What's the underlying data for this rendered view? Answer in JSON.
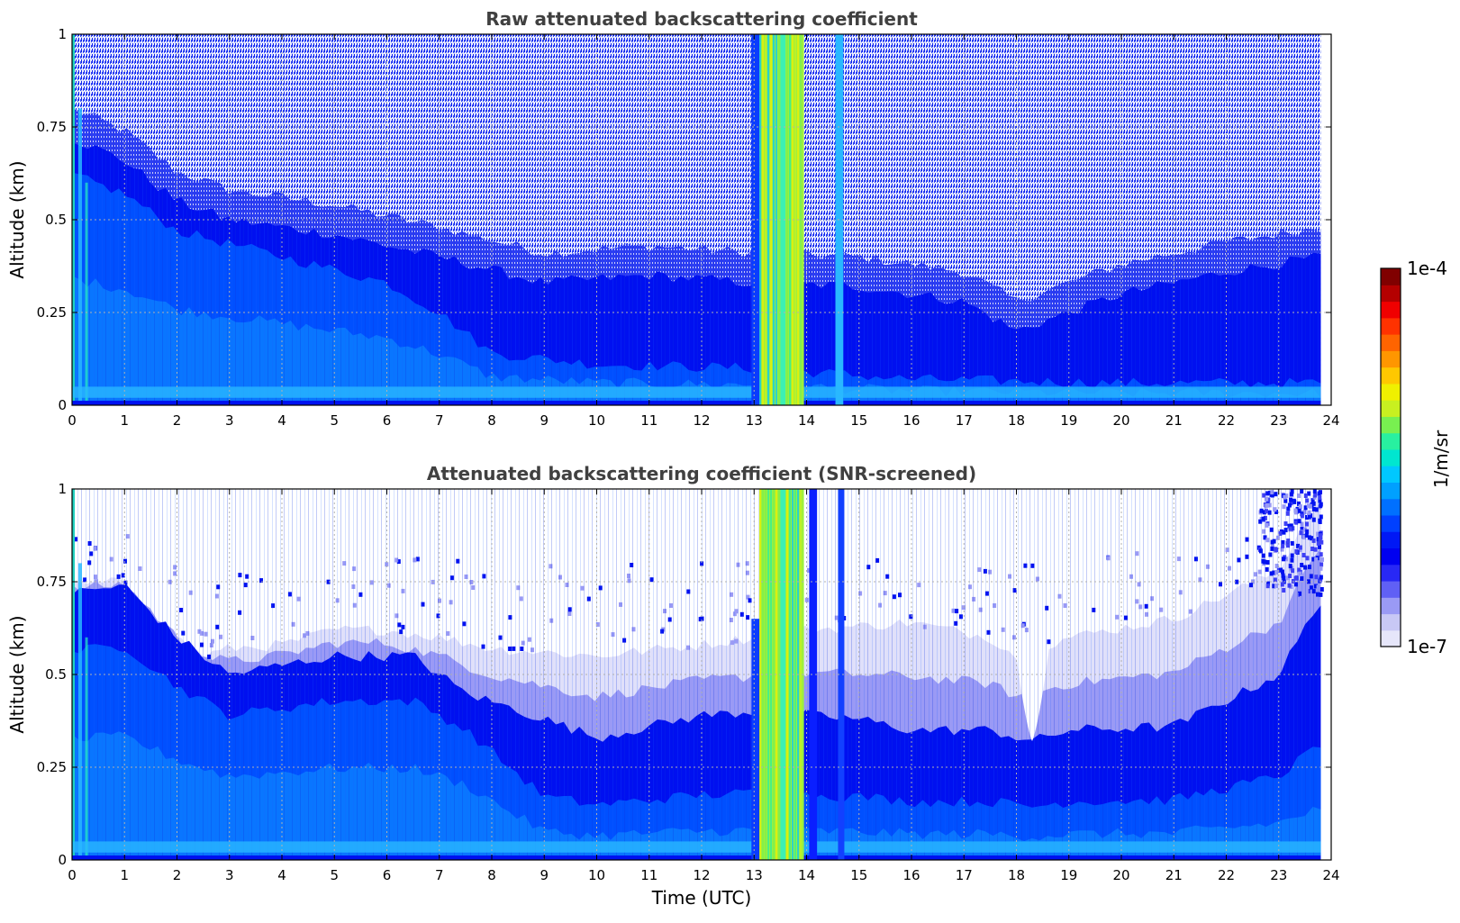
{
  "chart_data": [
    {
      "type": "heatmap",
      "title": "Raw attenuated backscattering coefficient",
      "ylabel": "Altitude (km)",
      "xlabel": "",
      "xlim": [
        0,
        24
      ],
      "ylim": [
        0,
        1
      ],
      "x_ticks": [
        "0",
        "1",
        "2",
        "3",
        "4",
        "5",
        "6",
        "7",
        "8",
        "9",
        "10",
        "11",
        "12",
        "13",
        "14",
        "15",
        "16",
        "17",
        "18",
        "19",
        "20",
        "21",
        "22",
        "23",
        "24"
      ],
      "y_ticks": [
        "0",
        "0.25",
        "0.5",
        "0.75",
        "1"
      ],
      "grid": true,
      "data_extent_x": [
        0,
        23.8
      ],
      "background_top_km": [
        {
          "t": 0,
          "km": 0.72
        },
        {
          "t": 1,
          "km": 0.66
        },
        {
          "t": 2,
          "km": 0.55
        },
        {
          "t": 3,
          "km": 0.5
        },
        {
          "t": 5,
          "km": 0.46
        },
        {
          "t": 7,
          "km": 0.4
        },
        {
          "t": 9,
          "km": 0.33
        },
        {
          "t": 11,
          "km": 0.35
        },
        {
          "t": 13,
          "km": 0.33
        },
        {
          "t": 15,
          "km": 0.32
        },
        {
          "t": 17,
          "km": 0.28
        },
        {
          "t": 18,
          "km": 0.2
        },
        {
          "t": 20,
          "km": 0.3
        },
        {
          "t": 22,
          "km": 0.36
        },
        {
          "t": 23.8,
          "km": 0.4
        }
      ],
      "aerosol_layer_top_km": [
        {
          "t": 0,
          "km": 0.62
        },
        {
          "t": 1,
          "km": 0.57
        },
        {
          "t": 2,
          "km": 0.47
        },
        {
          "t": 4,
          "km": 0.4
        },
        {
          "t": 6,
          "km": 0.33
        },
        {
          "t": 7,
          "km": 0.25
        },
        {
          "t": 8,
          "km": 0.14
        },
        {
          "t": 10,
          "km": 0.11
        },
        {
          "t": 13,
          "km": 0.1
        },
        {
          "t": 16,
          "km": 0.07
        },
        {
          "t": 20,
          "km": 0.06
        },
        {
          "t": 23.8,
          "km": 0.06
        }
      ],
      "cloud_periods": [
        {
          "start": 13.1,
          "end": 13.95,
          "color": "#9ef03c"
        },
        {
          "start": 13.5,
          "end": 13.6,
          "color": "#3cf0b4"
        },
        {
          "start": 14.55,
          "end": 14.7,
          "color": "#29b8ff"
        }
      ],
      "surface_band_km": [
        0.02,
        0.05
      ]
    },
    {
      "type": "heatmap",
      "title": "Attenuated backscattering coefficient (SNR-screened)",
      "ylabel": "Altitude (km)",
      "xlabel": "Time (UTC)",
      "xlim": [
        0,
        24
      ],
      "ylim": [
        0,
        1
      ],
      "x_ticks": [
        "0",
        "1",
        "2",
        "3",
        "4",
        "5",
        "6",
        "7",
        "8",
        "9",
        "10",
        "11",
        "12",
        "13",
        "14",
        "15",
        "16",
        "17",
        "18",
        "19",
        "20",
        "21",
        "22",
        "23",
        "24"
      ],
      "y_ticks": [
        "0",
        "0.25",
        "0.5",
        "0.75",
        "1"
      ],
      "grid": true,
      "data_extent_x": [
        0,
        23.8
      ],
      "screened_top_km": [
        {
          "t": 0,
          "km": 0.74
        },
        {
          "t": 1,
          "km": 0.75
        },
        {
          "t": 2,
          "km": 0.6
        },
        {
          "t": 2.5,
          "km": 0.55
        },
        {
          "t": 3,
          "km": 0.57
        },
        {
          "t": 4,
          "km": 0.58
        },
        {
          "t": 5,
          "km": 0.62
        },
        {
          "t": 6,
          "km": 0.62
        },
        {
          "t": 7,
          "km": 0.6
        },
        {
          "t": 8,
          "km": 0.57
        },
        {
          "t": 10,
          "km": 0.55
        },
        {
          "t": 12,
          "km": 0.58
        },
        {
          "t": 14,
          "km": 0.62
        },
        {
          "t": 16,
          "km": 0.64
        },
        {
          "t": 17.5,
          "km": 0.6
        },
        {
          "t": 18,
          "km": 0.55
        },
        {
          "t": 19,
          "km": 0.6
        },
        {
          "t": 21,
          "km": 0.65
        },
        {
          "t": 23,
          "km": 0.78
        },
        {
          "t": 23.8,
          "km": 1.0
        }
      ],
      "aerosol_layer_top_km": [
        {
          "t": 0,
          "km": 0.72
        },
        {
          "t": 1,
          "km": 0.74
        },
        {
          "t": 2,
          "km": 0.6
        },
        {
          "t": 3,
          "km": 0.5
        },
        {
          "t": 5,
          "km": 0.55
        },
        {
          "t": 6.5,
          "km": 0.55
        },
        {
          "t": 7.5,
          "km": 0.45
        },
        {
          "t": 9,
          "km": 0.38
        },
        {
          "t": 10,
          "km": 0.33
        },
        {
          "t": 12,
          "km": 0.39
        },
        {
          "t": 13,
          "km": 0.4
        },
        {
          "t": 15,
          "km": 0.38
        },
        {
          "t": 16,
          "km": 0.35
        },
        {
          "t": 17.5,
          "km": 0.35
        },
        {
          "t": 18.3,
          "km": 0.32
        },
        {
          "t": 19,
          "km": 0.35
        },
        {
          "t": 21,
          "km": 0.36
        },
        {
          "t": 23,
          "km": 0.5
        },
        {
          "t": 23.8,
          "km": 0.7
        }
      ],
      "clear_gap": {
        "center": 18.3,
        "half_width": 0.35,
        "bottom_km": 0.32,
        "top_km": 0.6
      },
      "cloud_periods": [
        {
          "start": 13.1,
          "end": 13.95,
          "color": "#9ef03c"
        },
        {
          "start": 13.5,
          "end": 13.6,
          "color": "#3cf0b4"
        },
        {
          "start": 14.05,
          "end": 14.2,
          "color": "#0a1fff"
        },
        {
          "start": 14.6,
          "end": 14.72,
          "color": "#1240ff"
        }
      ],
      "surface_band_km": [
        0.02,
        0.05
      ]
    }
  ],
  "colorbar": {
    "label": "1/m/sr",
    "top_label": "1e-4",
    "bottom_label": "1e-7",
    "colors": [
      "#e6e6fa",
      "#c8c8f5",
      "#9a9af5",
      "#6060f5",
      "#2828f5",
      "#0000f0",
      "#0018f5",
      "#0040ff",
      "#0070ff",
      "#00a0ff",
      "#00c8ff",
      "#00e6d0",
      "#28f0a0",
      "#78f050",
      "#c8f020",
      "#f0f000",
      "#ffc800",
      "#ff9600",
      "#ff6400",
      "#ff3200",
      "#f00000",
      "#b40000",
      "#800000"
    ]
  },
  "colors": {
    "background_screened": "#ffffff",
    "background_noise": "#e6e6fa",
    "noise_speckle": "#0010f0",
    "boundary_layer": "#0050ff",
    "near_surface": "#0a7cff",
    "surface_band": "#29b8ff",
    "faint_aerosol": "#9a9af5",
    "very_faint_aerosol": "#e0e0fa"
  }
}
